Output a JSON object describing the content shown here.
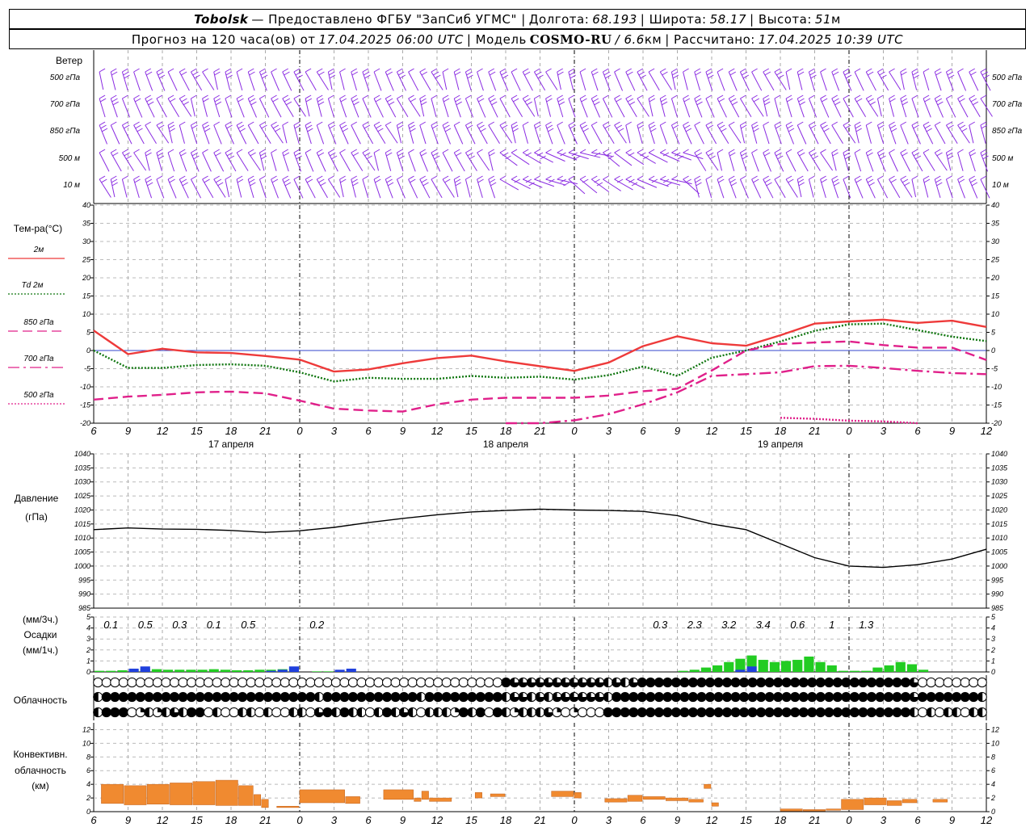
{
  "header": {
    "station": "Tobolsk",
    "provider": "— Предоставлено ФГБУ \"ЗапСиб УГМС\" |",
    "lon_label": "Долгота:",
    "lon_value": "68.193",
    "lat_label": "| Широта:",
    "lat_value": "58.17",
    "alt_label": "| Высота:",
    "alt_value": "51",
    "alt_unit": "м",
    "forecast_label": "Прогноз на 120 часа(ов) от",
    "forecast_start": "17.04.2025 06:00 UTC",
    "model_label": "| Модель",
    "model_name": "COSMO-RU",
    "model_res": "/ 6.6",
    "model_res_unit": "км",
    "calc_label": "| Рассчитано:",
    "calc_time": "17.04.2025 10:39 UTC"
  },
  "time_axis": {
    "hours": [
      6,
      9,
      12,
      15,
      18,
      21,
      0,
      3,
      6,
      9,
      12,
      15,
      18,
      21,
      0,
      3,
      6,
      9,
      12,
      15,
      18,
      21,
      0,
      3,
      6,
      9,
      12
    ],
    "dates": [
      "17 апреля",
      "18 апреля",
      "19 апреля"
    ]
  },
  "wind_panel": {
    "title": "Ветер",
    "levels": [
      "500 гПа",
      "700 гПа",
      "850 гПа",
      "500 м",
      "10 м"
    ],
    "color": "#8a2be2"
  },
  "chart_data": [
    {
      "type": "line",
      "name": "temperature",
      "ylabel": "Тем-ра(°C)",
      "ylim": [
        -20,
        40
      ],
      "yticks": [
        -20,
        -15,
        -10,
        -5,
        0,
        5,
        10,
        15,
        20,
        25,
        30,
        35,
        40
      ],
      "x_hours": [
        0,
        3,
        6,
        9,
        12,
        15,
        18,
        21,
        24,
        27,
        30,
        33,
        36,
        39,
        42,
        45,
        48,
        51,
        54,
        57,
        60,
        63,
        66,
        69,
        72,
        75,
        78
      ],
      "series": [
        {
          "name": "2м",
          "color": "#ee3a3a",
          "style": "solid",
          "values": [
            5.5,
            -1,
            0.5,
            -0.5,
            -0.7,
            -1.5,
            -2.5,
            -5.8,
            -5.2,
            -3.5,
            -2.1,
            -1.4,
            -3,
            -4.3,
            -5.6,
            -3.3,
            1.2,
            3.9,
            2,
            1.3,
            4.2,
            7.4,
            8,
            8.5,
            7.6,
            8.2,
            6.5
          ]
        },
        {
          "name": "Td 2м",
          "color": "#117711",
          "style": "dotted",
          "values": [
            0,
            -4.8,
            -4.8,
            -4,
            -3.8,
            -4.2,
            -6,
            -8.5,
            -7.5,
            -7.8,
            -7.8,
            -7,
            -7.5,
            -7.2,
            -8,
            -6.8,
            -4.4,
            -7,
            -2,
            0,
            2.5,
            5.4,
            7.2,
            7.4,
            5.6,
            3.8,
            2.6
          ]
        },
        {
          "name": "850 гПа",
          "color": "#e0208a",
          "style": "dashed",
          "values": [
            -13.5,
            -12.7,
            -12.2,
            -11.5,
            -11.3,
            -11.8,
            -13.8,
            -16,
            -16.5,
            -16.8,
            -14.8,
            -13.5,
            -13,
            -13,
            -13,
            -12.4,
            -11.2,
            -10.5,
            -5.5,
            0,
            1.8,
            2.2,
            2.5,
            1.5,
            0.8,
            0.8,
            -2.6
          ]
        },
        {
          "name": "700 гПа",
          "color": "#e0208a",
          "style": "dashdot",
          "values": [
            null,
            null,
            null,
            null,
            null,
            null,
            null,
            null,
            null,
            null,
            null,
            null,
            -20.2,
            -20,
            -19.2,
            -17.5,
            -14.8,
            -11.5,
            -7,
            -6.5,
            -6,
            -4.3,
            -4.2,
            -4.8,
            -5.6,
            -6.2,
            -6.5
          ]
        },
        {
          "name": "500 гПа",
          "color": "#e0208a",
          "style": "dotted",
          "values": [
            null,
            null,
            null,
            null,
            null,
            null,
            null,
            null,
            null,
            null,
            null,
            null,
            null,
            null,
            null,
            null,
            null,
            null,
            null,
            null,
            -18.5,
            -18.8,
            -19.3,
            -19.5,
            -20.2,
            null,
            null
          ]
        }
      ]
    },
    {
      "type": "line",
      "name": "pressure",
      "ylabel": "Давление",
      "ylabel2": "(гПа)",
      "ylim": [
        985,
        1040
      ],
      "yticks": [
        985,
        990,
        995,
        1000,
        1005,
        1010,
        1015,
        1020,
        1025,
        1030,
        1035,
        1040
      ],
      "x_hours": [
        0,
        3,
        6,
        9,
        12,
        15,
        18,
        21,
        24,
        27,
        30,
        33,
        36,
        39,
        42,
        45,
        48,
        51,
        54,
        57,
        60,
        63,
        66,
        69,
        72,
        75,
        78
      ],
      "values": [
        1013,
        1013.6,
        1013.2,
        1013.1,
        1012.7,
        1012,
        1012.6,
        1013.8,
        1015.5,
        1017,
        1018.3,
        1019.3,
        1019.8,
        1020.3,
        1020,
        1019.8,
        1019.5,
        1018,
        1015,
        1013,
        1008,
        1003,
        1000,
        999.5,
        1000.5,
        1002.5,
        1006
      ],
      "color": "#000000"
    },
    {
      "type": "bar",
      "name": "precipitation",
      "ylabel": "(мм/3ч.)",
      "ylabel2": "Осадки",
      "ylabel3": "(мм/1ч.)",
      "ylim": [
        0,
        5
      ],
      "yticks": [
        0,
        1,
        2,
        3,
        4,
        5
      ],
      "totals_3h": [
        {
          "at_hour": 3,
          "value": "0.1"
        },
        {
          "at_hour": 6,
          "value": "0.5"
        },
        {
          "at_hour": 9,
          "value": "0.3"
        },
        {
          "at_hour": 12,
          "value": "0.1"
        },
        {
          "at_hour": 15,
          "value": "0.5"
        },
        {
          "at_hour": 21,
          "value": "0.2"
        },
        {
          "at_hour": 51,
          "value": "0.3"
        },
        {
          "at_hour": 54,
          "value": "2.3"
        },
        {
          "at_hour": 57,
          "value": "3.2"
        },
        {
          "at_hour": 60,
          "value": "3.4"
        },
        {
          "at_hour": 63,
          "value": "0.6"
        },
        {
          "at_hour": 66,
          "value": "1"
        },
        {
          "at_hour": 69,
          "value": "1.3"
        }
      ],
      "hourly_rain": [
        {
          "hour": 0,
          "value": 0.1
        },
        {
          "hour": 1,
          "value": 0.1
        },
        {
          "hour": 2,
          "value": 0.15
        },
        {
          "hour": 3,
          "value": 0.2
        },
        {
          "hour": 4,
          "value": 0.3
        },
        {
          "hour": 5,
          "value": 0.25
        },
        {
          "hour": 6,
          "value": 0.2
        },
        {
          "hour": 7,
          "value": 0.2
        },
        {
          "hour": 8,
          "value": 0.2
        },
        {
          "hour": 9,
          "value": 0.2
        },
        {
          "hour": 10,
          "value": 0.25
        },
        {
          "hour": 11,
          "value": 0.2
        },
        {
          "hour": 12,
          "value": 0.15
        },
        {
          "hour": 13,
          "value": 0.15
        },
        {
          "hour": 14,
          "value": 0.2
        },
        {
          "hour": 15,
          "value": 0.2
        },
        {
          "hour": 16,
          "value": 0.25
        },
        {
          "hour": 17,
          "value": 0.3
        },
        {
          "hour": 19,
          "value": 0.05
        },
        {
          "hour": 20,
          "value": 0.05
        },
        {
          "hour": 51,
          "value": 0.1
        },
        {
          "hour": 52,
          "value": 0.2
        },
        {
          "hour": 53,
          "value": 0.4
        },
        {
          "hour": 54,
          "value": 0.6
        },
        {
          "hour": 55,
          "value": 0.9
        },
        {
          "hour": 56,
          "value": 1.2
        },
        {
          "hour": 57,
          "value": 1.5
        },
        {
          "hour": 58,
          "value": 1.1
        },
        {
          "hour": 59,
          "value": 0.9
        },
        {
          "hour": 60,
          "value": 1
        },
        {
          "hour": 61,
          "value": 1.1
        },
        {
          "hour": 62,
          "value": 1.4
        },
        {
          "hour": 63,
          "value": 0.9
        },
        {
          "hour": 64,
          "value": 0.6
        },
        {
          "hour": 65,
          "value": 0.1
        },
        {
          "hour": 66,
          "value": 0.1
        },
        {
          "hour": 67,
          "value": 0.1
        },
        {
          "hour": 68,
          "value": 0.4
        },
        {
          "hour": 69,
          "value": 0.6
        },
        {
          "hour": 70,
          "value": 0.9
        },
        {
          "hour": 71,
          "value": 0.7
        },
        {
          "hour": 72,
          "value": 0.2
        }
      ],
      "hourly_snow": [
        {
          "hour": 3,
          "value": 0.3
        },
        {
          "hour": 4,
          "value": 0.5
        },
        {
          "hour": 15,
          "value": 0.1
        },
        {
          "hour": 16,
          "value": 0.2
        },
        {
          "hour": 17,
          "value": 0.5
        },
        {
          "hour": 21,
          "value": 0.2
        },
        {
          "hour": 22,
          "value": 0.3
        },
        {
          "hour": 56,
          "value": 0.2
        },
        {
          "hour": 57,
          "value": 0.5
        }
      ],
      "rain_color": "#22cc22",
      "snow_color": "#2040dd"
    },
    {
      "type": "table",
      "name": "cloudiness",
      "ylabel": "Облачность",
      "rows": [
        [
          0,
          0,
          0,
          0,
          0,
          0,
          0,
          0,
          0,
          0,
          0,
          0,
          0,
          0,
          0,
          0,
          0,
          0,
          0,
          0,
          0,
          0,
          0,
          0,
          0,
          0,
          0,
          0,
          0,
          0,
          0,
          0,
          0,
          0,
          0,
          0,
          0,
          0,
          0,
          0,
          0,
          0,
          0,
          0,
          0,
          0,
          0,
          0,
          4,
          3,
          3,
          3,
          3,
          3,
          3,
          3,
          3,
          3,
          3,
          3,
          2,
          3,
          2,
          3,
          4,
          4,
          4,
          4,
          4,
          4,
          4,
          4,
          4,
          4,
          4,
          4,
          4,
          4,
          4,
          4,
          4,
          4,
          4,
          4,
          4,
          4,
          4,
          4,
          4,
          4,
          4,
          4,
          4,
          4,
          4,
          4,
          3,
          0,
          0,
          0,
          0,
          0,
          0,
          0,
          0
        ],
        [
          2,
          4,
          4,
          4,
          4,
          4,
          4,
          4,
          4,
          4,
          4,
          4,
          4,
          4,
          4,
          4,
          4,
          4,
          4,
          4,
          4,
          4,
          4,
          4,
          4,
          4,
          2,
          4,
          4,
          4,
          4,
          4,
          4,
          4,
          4,
          4,
          4,
          4,
          2,
          4,
          4,
          4,
          4,
          4,
          4,
          4,
          4,
          4,
          2,
          3,
          3,
          2,
          3,
          2,
          3,
          3,
          3,
          3,
          3,
          3,
          2,
          4,
          4,
          4,
          4,
          4,
          4,
          4,
          4,
          4,
          4,
          4,
          4,
          4,
          4,
          4,
          4,
          4,
          4,
          4,
          4,
          4,
          4,
          4,
          4,
          4,
          4,
          4,
          4,
          4,
          4,
          4,
          4,
          4,
          4,
          4,
          3,
          4,
          4,
          4,
          4,
          4,
          4,
          4,
          2
        ],
        [
          2,
          4,
          4,
          4,
          0,
          1,
          2,
          1,
          2,
          3,
          2,
          4,
          4,
          0,
          2,
          0,
          0,
          2,
          2,
          0,
          2,
          0,
          0,
          2,
          2,
          0,
          3,
          4,
          2,
          4,
          2,
          2,
          0,
          2,
          4,
          2,
          3,
          2,
          0,
          2,
          2,
          2,
          1,
          4,
          2,
          4,
          0,
          4,
          2,
          1,
          2,
          2,
          2,
          3,
          1,
          0,
          1,
          0,
          0,
          0,
          4,
          4,
          4,
          4,
          4,
          4,
          4,
          4,
          4,
          4,
          4,
          4,
          4,
          4,
          4,
          4,
          4,
          4,
          4,
          4,
          4,
          4,
          4,
          4,
          4,
          4,
          4,
          4,
          4,
          4,
          4,
          4,
          4,
          4,
          4,
          4,
          2,
          0,
          2,
          0,
          2,
          2,
          0,
          2,
          2
        ]
      ]
    },
    {
      "type": "bar",
      "name": "convective_clouds",
      "ylabel": "Конвективн.",
      "ylabel2": "облачность",
      "ylabel3": "(км)",
      "ylim": [
        0,
        13
      ],
      "yticks": [
        0,
        2,
        4,
        6,
        8,
        10,
        12
      ],
      "color": "#f08a30",
      "segments": [
        {
          "h0": 1,
          "h1": 4,
          "bottom": 1.2,
          "top": 4
        },
        {
          "h0": 4,
          "h1": 7,
          "bottom": 1.0,
          "top": 3.8
        },
        {
          "h0": 7,
          "h1": 10,
          "bottom": 1.1,
          "top": 4
        },
        {
          "h0": 10,
          "h1": 13,
          "bottom": 1.0,
          "top": 4.2
        },
        {
          "h0": 13,
          "h1": 16,
          "bottom": 1.0,
          "top": 4.4
        },
        {
          "h0": 16,
          "h1": 19,
          "bottom": 0.9,
          "top": 4.6
        },
        {
          "h0": 19,
          "h1": 21,
          "bottom": 0.9,
          "top": 3.8
        },
        {
          "h0": 21,
          "h1": 22,
          "bottom": 0.9,
          "top": 2.5
        },
        {
          "h0": 22,
          "h1": 23,
          "bottom": 0.6,
          "top": 1.8
        },
        {
          "h0": 24,
          "h1": 27,
          "bottom": 0.6,
          "top": 0.8
        },
        {
          "h0": 27,
          "h1": 33,
          "bottom": 1.3,
          "top": 3.2
        },
        {
          "h0": 33,
          "h1": 35,
          "bottom": 1.2,
          "top": 2.2
        },
        {
          "h0": 38,
          "h1": 42,
          "bottom": 1.8,
          "top": 3.2
        },
        {
          "h0": 42,
          "h1": 43,
          "bottom": 1.5,
          "top": 2.0
        },
        {
          "h0": 43,
          "h1": 44,
          "bottom": 1.8,
          "top": 3.0
        },
        {
          "h0": 44,
          "h1": 47,
          "bottom": 1.5,
          "top": 2.0
        },
        {
          "h0": 50,
          "h1": 51,
          "bottom": 2.0,
          "top": 2.8
        },
        {
          "h0": 52,
          "h1": 54,
          "bottom": 2.2,
          "top": 2.6
        },
        {
          "h0": 60,
          "h1": 63,
          "bottom": 2.2,
          "top": 3.0
        },
        {
          "h0": 63,
          "h1": 64,
          "bottom": 2.0,
          "top": 2.8
        },
        {
          "h0": 67,
          "h1": 70,
          "bottom": 1.4,
          "top": 1.9
        },
        {
          "h0": 70,
          "h1": 72,
          "bottom": 1.5,
          "top": 2.4
        },
        {
          "h0": 72,
          "h1": 75,
          "bottom": 1.8,
          "top": 2.2
        },
        {
          "h0": 75,
          "h1": 78,
          "bottom": 1.6,
          "top": 2.0
        },
        {
          "h0": 78,
          "h1": 80,
          "bottom": 1.4,
          "top": 1.8
        },
        {
          "h0": 80,
          "h1": 81,
          "bottom": 3.4,
          "top": 4.0
        },
        {
          "h0": 81,
          "h1": 82,
          "bottom": 0.8,
          "top": 1.3
        },
        {
          "h0": 90,
          "h1": 93,
          "bottom": 0.1,
          "top": 0.4
        },
        {
          "h0": 93,
          "h1": 96,
          "bottom": 0.1,
          "top": 0.3
        },
        {
          "h0": 96,
          "h1": 98,
          "bottom": 0.2,
          "top": 0.4
        },
        {
          "h0": 98,
          "h1": 101,
          "bottom": 0.3,
          "top": 1.8
        },
        {
          "h0": 101,
          "h1": 104,
          "bottom": 1.0,
          "top": 2.0
        },
        {
          "h0": 104,
          "h1": 106,
          "bottom": 0.9,
          "top": 1.6
        },
        {
          "h0": 106,
          "h1": 108,
          "bottom": 1.3,
          "top": 1.8
        },
        {
          "h0": 110,
          "h1": 112,
          "bottom": 1.4,
          "top": 1.8
        }
      ]
    }
  ]
}
